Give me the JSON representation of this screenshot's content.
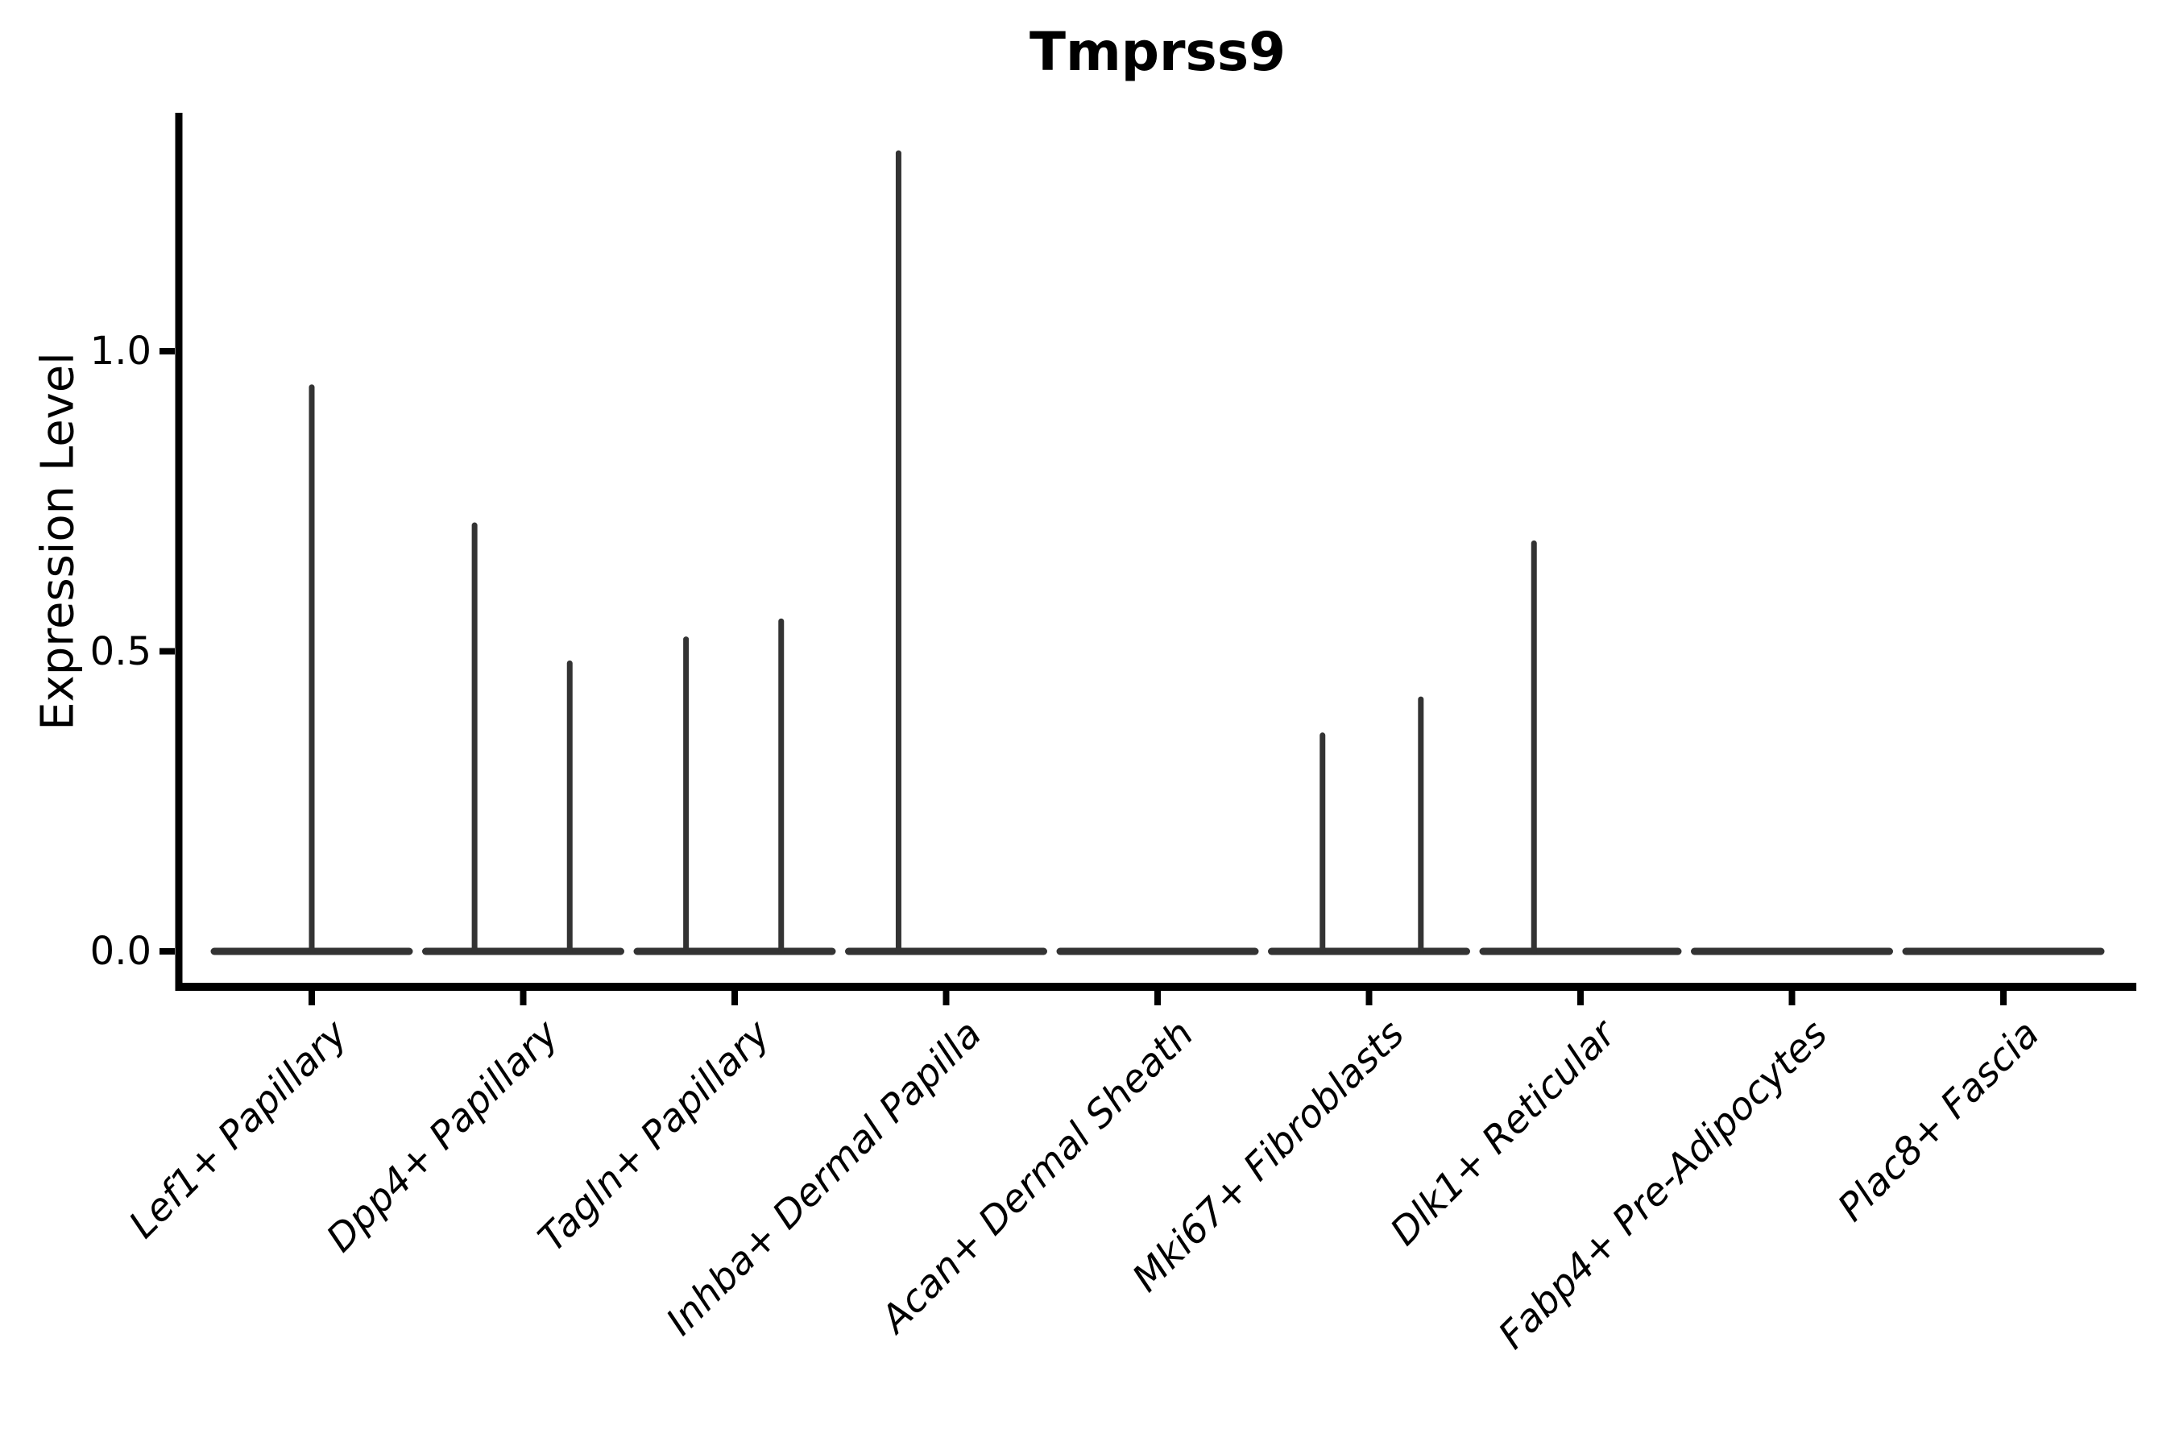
{
  "page": {
    "background": "#ffffff"
  },
  "chart_data": {
    "type": "violin",
    "title": "Tmprss9",
    "xlabel": "",
    "ylabel": "Expression Level",
    "ylim": [
      -0.06,
      1.4
    ],
    "grid": false,
    "legend": "none",
    "yticks": [
      {
        "label": "0.0",
        "value": 0.0
      },
      {
        "label": "0.5",
        "value": 0.5
      },
      {
        "label": "1.0",
        "value": 1.0
      }
    ],
    "categories": [
      "Lef1+ Papillary",
      "Dpp4+ Papillary",
      "Tagln+ Papillary",
      "Inhba+ Dermal Papilla",
      "Acan+ Dermal Sheath",
      "Mki67+ Fibroblasts",
      "Dlk1+ Reticular",
      "Fabp4+ Pre-Adipocytes",
      "Plac8+ Fascia"
    ],
    "violins": [
      {
        "category": "Lef1+ Papillary",
        "baseline_value": 0.0,
        "spikes": [
          {
            "offset_frac": 0.0,
            "max_value": 0.94
          }
        ]
      },
      {
        "category": "Dpp4+ Papillary",
        "baseline_value": 0.0,
        "spikes": [
          {
            "offset_frac": -0.23,
            "max_value": 0.71
          },
          {
            "offset_frac": 0.22,
            "max_value": 0.48
          }
        ]
      },
      {
        "category": "Tagln+ Papillary",
        "baseline_value": 0.0,
        "spikes": [
          {
            "offset_frac": -0.23,
            "max_value": 0.52
          },
          {
            "offset_frac": 0.22,
            "max_value": 0.55
          }
        ]
      },
      {
        "category": "Inhba+ Dermal Papilla",
        "baseline_value": 0.0,
        "spikes": [
          {
            "offset_frac": -0.225,
            "max_value": 1.33
          }
        ]
      },
      {
        "category": "Acan+ Dermal Sheath",
        "baseline_value": 0.0,
        "spikes": []
      },
      {
        "category": "Mki67+ Fibroblasts",
        "baseline_value": 0.0,
        "spikes": [
          {
            "offset_frac": -0.22,
            "max_value": 0.36
          },
          {
            "offset_frac": 0.245,
            "max_value": 0.42
          }
        ]
      },
      {
        "category": "Dlk1+ Reticular",
        "baseline_value": 0.0,
        "spikes": [
          {
            "offset_frac": -0.22,
            "max_value": 0.68
          }
        ]
      },
      {
        "category": "Fabp4+ Pre-Adipocytes",
        "baseline_value": 0.0,
        "spikes": []
      },
      {
        "category": "Plac8+ Fascia",
        "baseline_value": 0.0,
        "spikes": []
      }
    ],
    "style": {
      "violin_color": "#333333",
      "axis_color": "#000000",
      "text_color": "#000000"
    }
  }
}
